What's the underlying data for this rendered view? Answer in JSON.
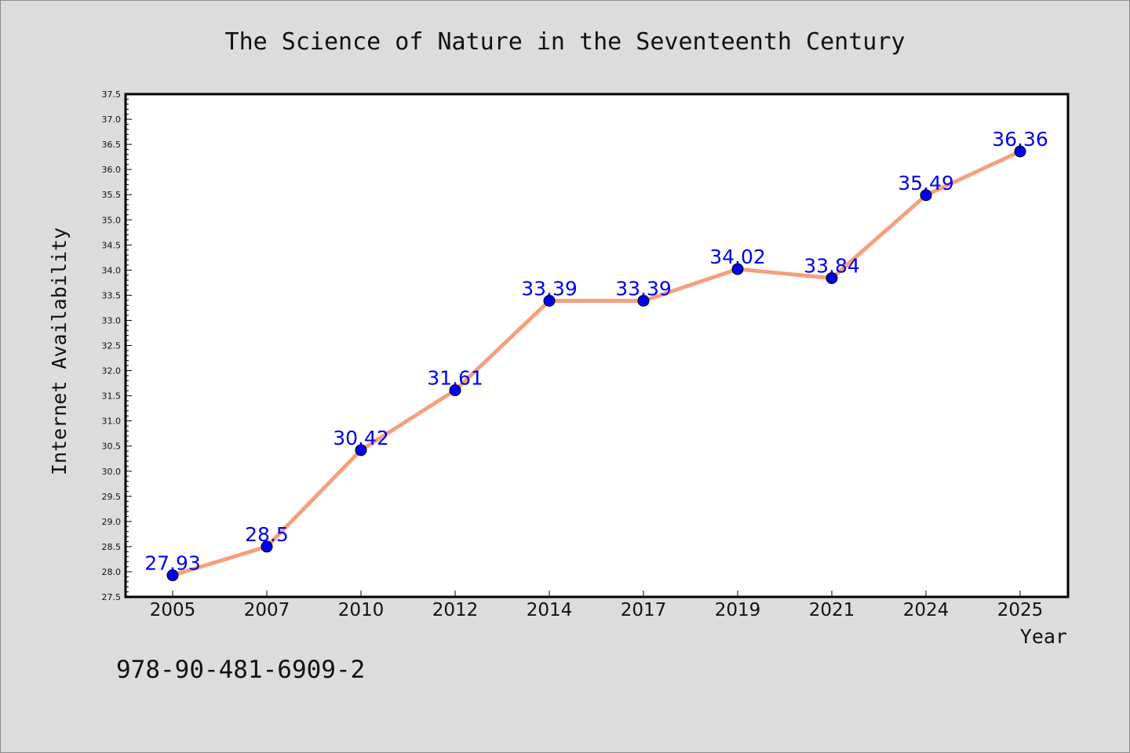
{
  "chart_data": {
    "type": "line",
    "title": "The Science of Nature in the Seventeenth Century",
    "xlabel": "Year",
    "ylabel": "Internet Availability",
    "categories": [
      "2005",
      "2007",
      "2010",
      "2012",
      "2014",
      "2017",
      "2019",
      "2021",
      "2024",
      "2025"
    ],
    "series": [
      {
        "values": [
          27.93,
          28.5,
          30.42,
          31.61,
          33.39,
          33.39,
          34.02,
          33.84,
          35.49,
          36.36
        ]
      }
    ],
    "data_labels": [
      "27.93",
      "28.5",
      "30.42",
      "31.61",
      "33.39",
      "33.39",
      "34.02",
      "33.84",
      "35.49",
      "36.36"
    ],
    "ylim": [
      27.5,
      37.5
    ],
    "ytick_step": 0.5,
    "grid": false,
    "legend": "none",
    "colors": {
      "line": "#f4a07e",
      "marker": "#0000ee",
      "data_label": "#0000ee",
      "plot_bg": "#ffffff",
      "page_bg": "#dcdcdc"
    }
  },
  "footer": {
    "isbn": "978-90-481-6909-2"
  }
}
